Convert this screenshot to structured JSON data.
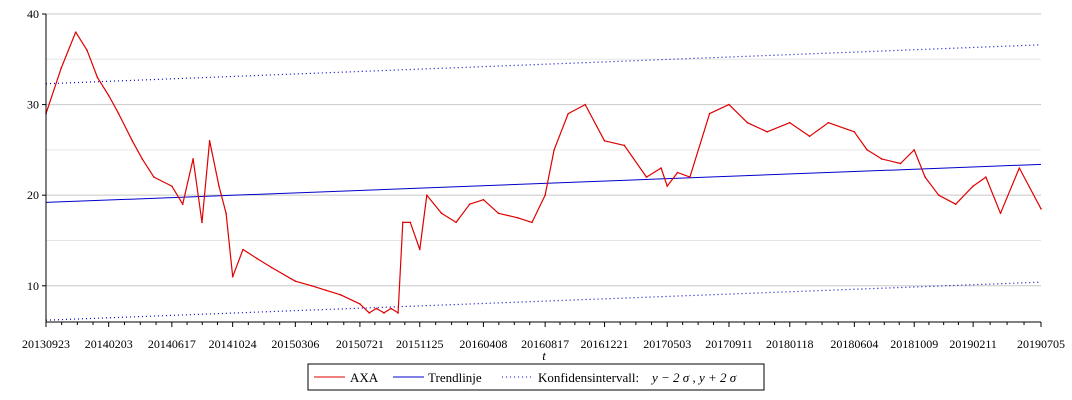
{
  "chart_data": {
    "type": "line",
    "xlabel": "t",
    "ylabel": "",
    "ylim": [
      6,
      40
    ],
    "y_ticks": [
      "10",
      "20",
      "30",
      "40"
    ],
    "x_tick_labels": [
      "20130923",
      "20140203",
      "20140617",
      "20141024",
      "20150306",
      "20150721",
      "20151125",
      "20160408",
      "20160817",
      "20161221",
      "20170503",
      "20170911",
      "20180118",
      "20180604",
      "20181009",
      "20190211",
      "20190705"
    ],
    "grid": "horizontal",
    "legend_position": "bottom",
    "colors": {
      "axa": "#e00000",
      "trend": "#0000cc",
      "confidence": "#0000cc",
      "grid": "#c8c8c8"
    },
    "series": [
      {
        "name": "AXA",
        "style": "solid",
        "x": [
          "20130923",
          "20131025",
          "20131125",
          "20131219",
          "20140110",
          "20140203",
          "20140224",
          "20140325",
          "20140415",
          "20140510",
          "20140617",
          "20140710",
          "20140801",
          "20140820",
          "20140905",
          "20140925",
          "20141010",
          "20141024",
          "20141115",
          "20141215",
          "20150115",
          "20150306",
          "20150410",
          "20150510",
          "20150610",
          "20150721",
          "20150810",
          "20150825",
          "20150910",
          "20150925",
          "20151010",
          "20151020",
          "20151105",
          "20151125",
          "20151210",
          "20160110",
          "20160210",
          "20160310",
          "20160408",
          "20160510",
          "20160620",
          "20160720",
          "20160817",
          "20160905",
          "20161005",
          "20161110",
          "20161221",
          "20170201",
          "20170320",
          "20170420",
          "20170503",
          "20170525",
          "20170620",
          "20170801",
          "20170911",
          "20171020",
          "20171201",
          "20180118",
          "20180301",
          "20180410",
          "20180604",
          "20180701",
          "20180801",
          "20180910",
          "20181009",
          "20181101",
          "20181130",
          "20190105",
          "20190211",
          "20190310",
          "20190410",
          "20190520",
          "20190705"
        ],
        "y": [
          29,
          34,
          38,
          36,
          33,
          31,
          29,
          26,
          24,
          22,
          21,
          19,
          24,
          17,
          26,
          21,
          18,
          11,
          14,
          13,
          12,
          10.5,
          10,
          9.5,
          9,
          8,
          7,
          7.5,
          7,
          7.5,
          7,
          17,
          17,
          14,
          20,
          18,
          17,
          19,
          19.5,
          18,
          17.5,
          17,
          20,
          25,
          29,
          30,
          26,
          25.5,
          22,
          23,
          21,
          22.5,
          22,
          29,
          30,
          28,
          27,
          28,
          26.5,
          28,
          27,
          25,
          24,
          23.5,
          25,
          22,
          20,
          19,
          21,
          22,
          18,
          23,
          18.5
        ]
      },
      {
        "name": "Trendlinje",
        "style": "solid",
        "x": [
          "20130923",
          "20190705"
        ],
        "y": [
          19.2,
          23.4
        ]
      },
      {
        "name": "Konfidensintervall:",
        "name_math": "y − 2 σ , y + 2 σ",
        "style": "dotted",
        "upper": {
          "x": [
            "20130923",
            "20190705"
          ],
          "y": [
            32.3,
            36.6
          ]
        },
        "lower": {
          "x": [
            "20130923",
            "20190705"
          ],
          "y": [
            6.2,
            10.4
          ]
        }
      }
    ]
  }
}
